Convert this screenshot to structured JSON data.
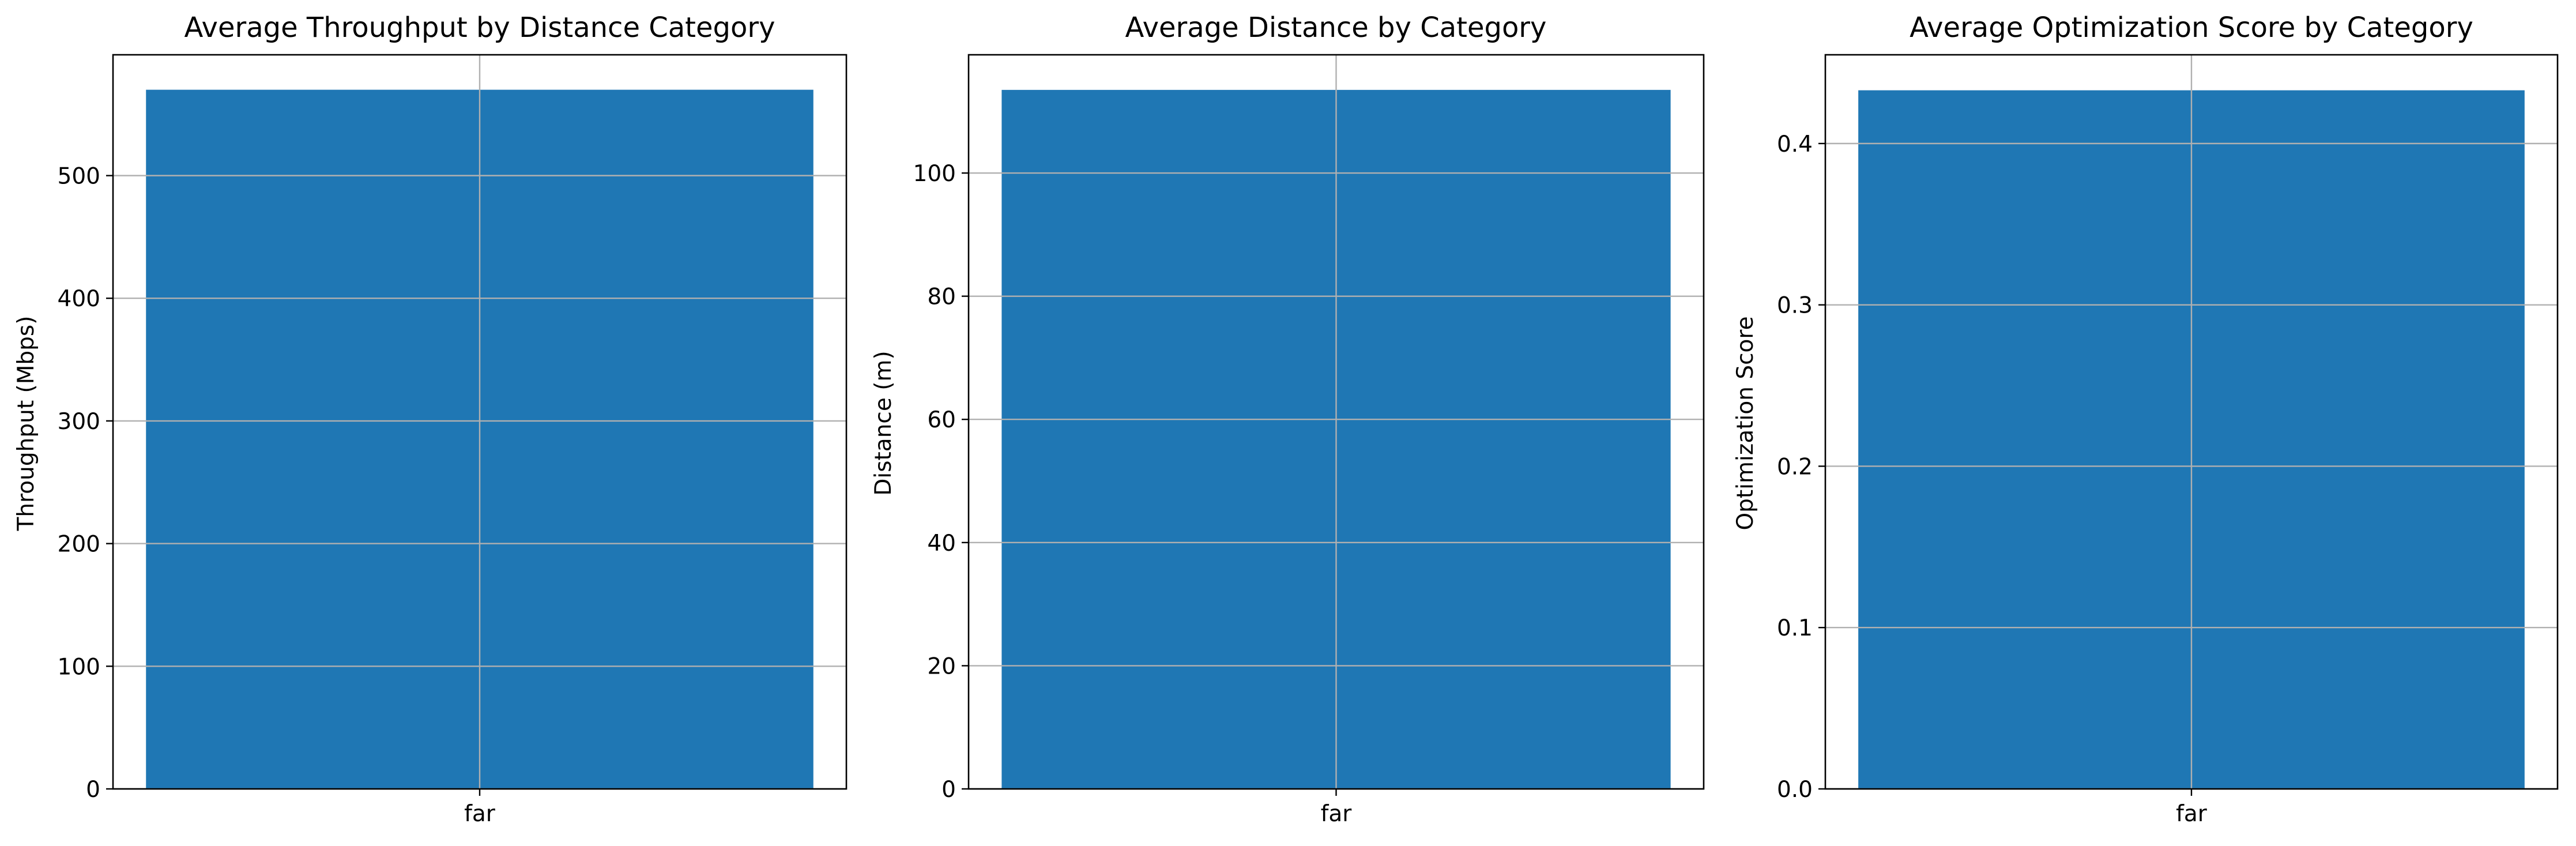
{
  "chart_data": [
    {
      "type": "bar",
      "title": "Average Throughput by Distance Category",
      "xlabel": "",
      "ylabel": "Throughput (Mbps)",
      "categories": [
        "far"
      ],
      "values": [
        570
      ],
      "ylim": [
        0,
        598.5
      ],
      "yticks": [
        0,
        100,
        200,
        300,
        400,
        500
      ],
      "ytick_labels": [
        "0",
        "100",
        "200",
        "300",
        "400",
        "500"
      ],
      "grid": true,
      "bar_color": "#1f77b4"
    },
    {
      "type": "bar",
      "title": "Average Distance by Category",
      "xlabel": "",
      "ylabel": "Distance (m)",
      "categories": [
        "far"
      ],
      "values": [
        113.5
      ],
      "ylim": [
        0,
        119.2
      ],
      "yticks": [
        0,
        20,
        40,
        60,
        80,
        100
      ],
      "ytick_labels": [
        "0",
        "20",
        "40",
        "60",
        "80",
        "100"
      ],
      "grid": true,
      "bar_color": "#1f77b4"
    },
    {
      "type": "bar",
      "title": "Average Optimization Score by Category",
      "xlabel": "",
      "ylabel": "Optimization Score",
      "categories": [
        "far"
      ],
      "values": [
        0.433
      ],
      "ylim": [
        0,
        0.455
      ],
      "yticks": [
        0.0,
        0.1,
        0.2,
        0.3,
        0.4
      ],
      "ytick_labels": [
        "0.0",
        "0.1",
        "0.2",
        "0.3",
        "0.4"
      ],
      "grid": true,
      "bar_color": "#1f77b4"
    }
  ]
}
